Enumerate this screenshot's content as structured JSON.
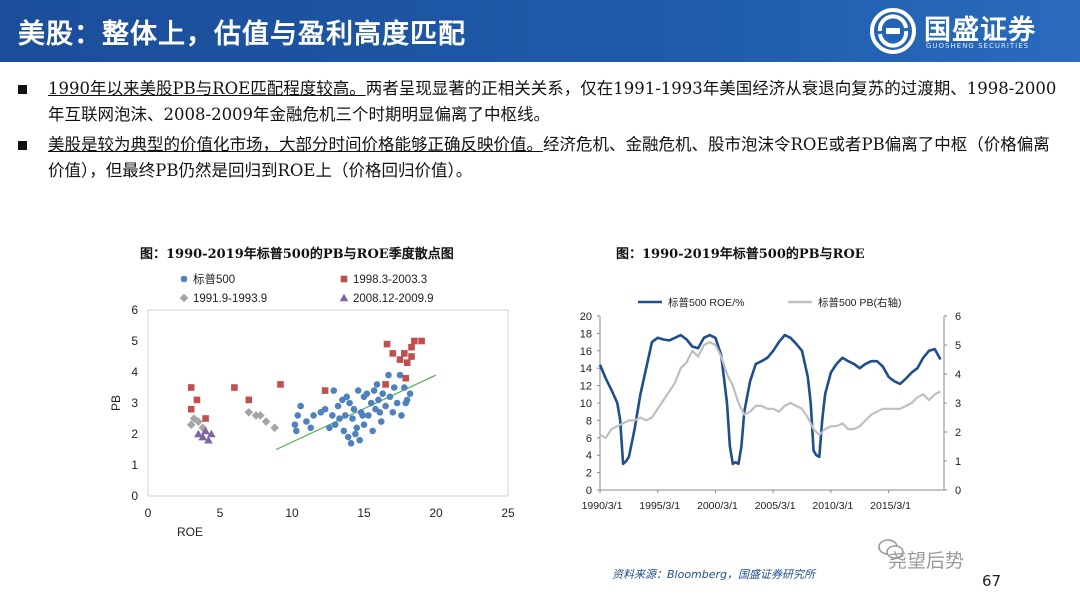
{
  "header": {
    "title": "美股：整体上，估值与盈利高度匹配",
    "logo_name": "国盛证券",
    "logo_sub": "GUOSHENG SECURITIES"
  },
  "bullets": [
    {
      "lead": "1990年以来美股PB与ROE匹配程度较高。",
      "rest": "两者呈现显著的正相关关系，仅在1991-1993年美国经济从衰退向复苏的过渡期、1998-2000年互联网泡沫、2008-2009年金融危机三个时期明显偏离了中枢线。"
    },
    {
      "lead": "美股是较为典型的价值化市场，大部分时间价格能够正确反映价值。",
      "rest": "经济危机、金融危机、股市泡沫令ROE或者PB偏离了中枢（价格偏离价值），但最终PB仍然是回归到ROE上（价格回归价值）。"
    }
  ],
  "footer": {
    "source": "资料来源：Bloomberg，国盛证券研究所",
    "watermark": "尧望后势",
    "page": "67"
  },
  "colors": {
    "header": "#1e5aa8",
    "blue": "#4f81bd",
    "red": "#c0504d",
    "grey": "#a5a5a5",
    "purple": "#8064a2",
    "navy": "#1f4e8c",
    "trend": "#4caf50"
  },
  "chart_data": [
    {
      "type": "scatter",
      "title": "图：1990-2019年标普500的PB与ROE季度散点图",
      "xlabel": "ROE",
      "ylabel": "PB",
      "xlim": [
        0,
        25
      ],
      "ylim": [
        0,
        6
      ],
      "xticks": [
        "0",
        "5",
        "10",
        "15",
        "20",
        "25"
      ],
      "yticks": [
        "0",
        "1",
        "2",
        "3",
        "4",
        "5",
        "6"
      ],
      "grid": false,
      "legend": "top",
      "series": [
        {
          "name": "标普500",
          "marker": "circle",
          "color": "#4f81bd",
          "points": [
            [
              10.2,
              2.3
            ],
            [
              10.4,
              2.6
            ],
            [
              10.6,
              2.9
            ],
            [
              10.3,
              2.1
            ],
            [
              11.0,
              2.4
            ],
            [
              11.5,
              2.6
            ],
            [
              12.0,
              2.7
            ],
            [
              12.3,
              2.8
            ],
            [
              12.8,
              2.6
            ],
            [
              13.0,
              2.3
            ],
            [
              13.2,
              2.9
            ],
            [
              13.5,
              3.1
            ],
            [
              13.8,
              3.2
            ],
            [
              14.0,
              3.0
            ],
            [
              14.2,
              2.5
            ],
            [
              14.5,
              2.2
            ],
            [
              14.8,
              2.7
            ],
            [
              15.0,
              3.2
            ],
            [
              15.2,
              3.3
            ],
            [
              15.5,
              3.0
            ],
            [
              15.8,
              2.8
            ],
            [
              16.0,
              3.1
            ],
            [
              16.3,
              3.3
            ],
            [
              16.5,
              2.9
            ],
            [
              16.8,
              3.2
            ],
            [
              17.0,
              2.7
            ],
            [
              17.3,
              3.0
            ],
            [
              17.6,
              2.6
            ],
            [
              17.8,
              3.5
            ],
            [
              18.0,
              3.1
            ],
            [
              18.2,
              3.3
            ],
            [
              13.6,
              2.1
            ],
            [
              13.9,
              1.9
            ],
            [
              14.1,
              1.7
            ],
            [
              14.4,
              2.0
            ],
            [
              14.7,
              1.8
            ],
            [
              15.0,
              2.3
            ],
            [
              15.3,
              2.6
            ],
            [
              15.6,
              2.1
            ],
            [
              16.1,
              2.7
            ],
            [
              12.6,
              2.2
            ],
            [
              13.3,
              2.5
            ],
            [
              14.6,
              3.4
            ],
            [
              15.9,
              3.6
            ],
            [
              16.7,
              3.9
            ],
            [
              17.5,
              3.9
            ],
            [
              11.3,
              2.2
            ],
            [
              12.9,
              3.4
            ],
            [
              13.7,
              2.6
            ],
            [
              14.3,
              2.8
            ],
            [
              14.9,
              2.6
            ],
            [
              15.7,
              3.4
            ],
            [
              16.2,
              2.4
            ],
            [
              17.1,
              3.5
            ],
            [
              17.9,
              3.0
            ]
          ]
        },
        {
          "name": "1998.3-2003.3",
          "marker": "square",
          "color": "#c0504d",
          "points": [
            [
              3.0,
              3.5
            ],
            [
              3.0,
              2.8
            ],
            [
              3.4,
              3.1
            ],
            [
              4.0,
              2.5
            ],
            [
              6.0,
              3.5
            ],
            [
              7.0,
              3.1
            ],
            [
              9.2,
              3.6
            ],
            [
              12.3,
              3.4
            ],
            [
              16.5,
              3.6
            ],
            [
              16.6,
              4.9
            ],
            [
              17.0,
              4.6
            ],
            [
              17.5,
              4.4
            ],
            [
              17.8,
              4.6
            ],
            [
              18.0,
              4.3
            ],
            [
              18.3,
              4.8
            ],
            [
              18.5,
              5.0
            ],
            [
              19.0,
              5.0
            ],
            [
              17.9,
              3.8
            ],
            [
              18.3,
              4.5
            ]
          ]
        },
        {
          "name": "1991.9-1993.9",
          "marker": "diamond",
          "color": "#a5a5a5",
          "points": [
            [
              3.0,
              2.3
            ],
            [
              3.5,
              2.4
            ],
            [
              3.8,
              2.2
            ],
            [
              7.5,
              2.6
            ],
            [
              7.8,
              2.6
            ],
            [
              8.2,
              2.4
            ],
            [
              8.8,
              2.2
            ],
            [
              3.2,
              2.5
            ],
            [
              7.0,
              2.7
            ]
          ]
        },
        {
          "name": "2008.12-2009.9",
          "marker": "triangle",
          "color": "#8064a2",
          "points": [
            [
              3.5,
              2.0
            ],
            [
              3.8,
              1.9
            ],
            [
              4.0,
              2.1
            ],
            [
              4.2,
              1.8
            ],
            [
              4.4,
              2.0
            ]
          ]
        }
      ],
      "trendline": {
        "color": "#4caf50",
        "points": [
          [
            8.9,
            1.5
          ],
          [
            20.0,
            3.9
          ]
        ]
      }
    },
    {
      "type": "line",
      "title": "图：1990-2019年标普500的PB与ROE",
      "xlabel": "",
      "ylabel": "",
      "xlim": [
        1990,
        2019.8
      ],
      "xticks": [
        "1990/3/1",
        "1995/3/1",
        "2000/3/1",
        "2005/3/1",
        "2010/3/1",
        "2015/3/1"
      ],
      "y_left": {
        "lim": [
          0,
          20
        ],
        "ticks": [
          "0",
          "2",
          "4",
          "6",
          "8",
          "10",
          "12",
          "14",
          "16",
          "18",
          "20"
        ]
      },
      "y_right": {
        "lim": [
          0,
          6
        ],
        "ticks": [
          "0",
          "1",
          "2",
          "3",
          "4",
          "5",
          "6"
        ]
      },
      "legend": "top",
      "series": [
        {
          "name": "标普500 ROE/%",
          "axis": "left",
          "color": "#1f4e8c",
          "x": [
            1990,
            1990.5,
            1991,
            1991.5,
            1991.75,
            1992,
            1992.25,
            1992.5,
            1993,
            1993.5,
            1994,
            1994.5,
            1995,
            1995.5,
            1996,
            1996.5,
            1997,
            1997.5,
            1998,
            1998.5,
            1999,
            1999.5,
            2000,
            2000.5,
            2001,
            2001.25,
            2001.5,
            2001.75,
            2002,
            2002.25,
            2002.5,
            2003,
            2003.5,
            2004,
            2004.5,
            2005,
            2005.5,
            2006,
            2006.5,
            2007,
            2007.5,
            2008,
            2008.25,
            2008.5,
            2008.75,
            2009,
            2009.25,
            2009.5,
            2010,
            2010.5,
            2011,
            2011.5,
            2012,
            2012.5,
            2013,
            2013.5,
            2014,
            2014.5,
            2015,
            2015.5,
            2016,
            2016.5,
            2017,
            2017.5,
            2018,
            2018.5,
            2019,
            2019.5
          ],
          "y": [
            14.4,
            12.8,
            11.5,
            10.0,
            8.0,
            3.0,
            3.3,
            3.8,
            7.0,
            11.0,
            14.0,
            17.0,
            17.5,
            17.3,
            17.2,
            17.5,
            17.8,
            17.3,
            16.5,
            16.3,
            17.5,
            17.8,
            17.5,
            15.5,
            10.0,
            5.0,
            3.0,
            3.2,
            3.0,
            5.0,
            9.0,
            12.5,
            14.5,
            14.8,
            15.2,
            16.0,
            17.0,
            17.8,
            17.5,
            16.8,
            16.0,
            13.0,
            10.0,
            4.5,
            4.0,
            3.8,
            8.0,
            11.0,
            13.5,
            14.5,
            15.2,
            14.8,
            14.5,
            14.0,
            14.5,
            14.8,
            14.8,
            14.2,
            13.0,
            12.5,
            12.2,
            12.8,
            13.5,
            14.0,
            15.2,
            16.0,
            16.2,
            15.0
          ]
        },
        {
          "name": "标普500 PB(右轴)",
          "axis": "right",
          "color": "#bfbfbf",
          "x": [
            1990,
            1990.5,
            1991,
            1991.5,
            1992,
            1992.5,
            1993,
            1993.5,
            1994,
            1994.5,
            1995,
            1995.5,
            1996,
            1996.5,
            1997,
            1997.5,
            1998,
            1998.5,
            1999,
            1999.5,
            2000,
            2000.5,
            2001,
            2001.5,
            2002,
            2002.5,
            2003,
            2003.5,
            2004,
            2004.5,
            2005,
            2005.5,
            2006,
            2006.5,
            2007,
            2007.5,
            2008,
            2008.5,
            2009,
            2009.25,
            2009.5,
            2010,
            2010.5,
            2011,
            2011.5,
            2012,
            2012.5,
            2013,
            2013.5,
            2014,
            2014.5,
            2015,
            2015.5,
            2016,
            2016.5,
            2017,
            2017.5,
            2018,
            2018.5,
            2019,
            2019.5
          ],
          "y": [
            1.9,
            1.8,
            2.1,
            2.2,
            2.3,
            2.4,
            2.4,
            2.5,
            2.4,
            2.5,
            2.8,
            3.1,
            3.4,
            3.7,
            4.2,
            4.4,
            4.8,
            4.6,
            5.0,
            5.1,
            5.0,
            4.6,
            4.0,
            3.6,
            3.0,
            2.6,
            2.7,
            2.9,
            2.9,
            2.8,
            2.8,
            2.7,
            2.9,
            3.0,
            2.9,
            2.8,
            2.5,
            2.1,
            1.9,
            2.0,
            2.1,
            2.2,
            2.2,
            2.3,
            2.1,
            2.1,
            2.2,
            2.4,
            2.6,
            2.7,
            2.8,
            2.8,
            2.8,
            2.8,
            2.9,
            3.0,
            3.2,
            3.3,
            3.1,
            3.3,
            3.4
          ]
        }
      ]
    }
  ]
}
